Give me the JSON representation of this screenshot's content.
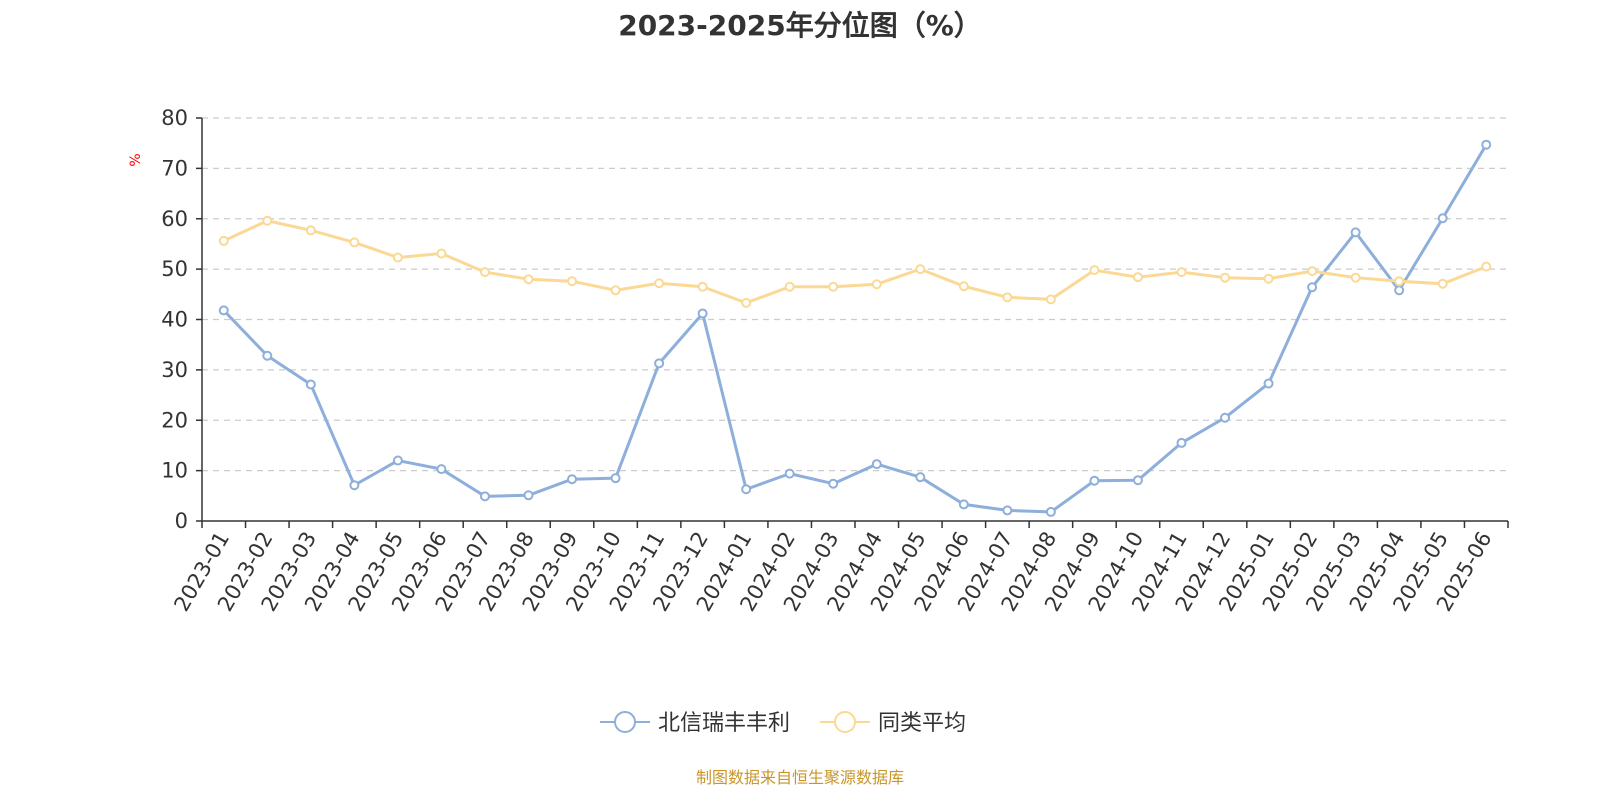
{
  "title": "2023-2025年分位图（%）",
  "source": "制图数据来自恒生聚源数据库",
  "chart_data": {
    "type": "line",
    "x": [
      "2023-01",
      "2023-02",
      "2023-03",
      "2023-04",
      "2023-05",
      "2023-06",
      "2023-07",
      "2023-08",
      "2023-09",
      "2023-10",
      "2023-11",
      "2023-12",
      "2024-01",
      "2024-02",
      "2024-03",
      "2024-04",
      "2024-05",
      "2024-06",
      "2024-07",
      "2024-08",
      "2024-09",
      "2024-10",
      "2024-11",
      "2024-12",
      "2025-01",
      "2025-02",
      "2025-03",
      "2025-04",
      "2025-05",
      "2025-06"
    ],
    "ylabel": "%",
    "ylim": [
      0,
      80
    ],
    "yticks": [
      0,
      10,
      20,
      30,
      40,
      50,
      60,
      70,
      80
    ],
    "grid": true,
    "legend_position": "bottom",
    "series": [
      {
        "name": "北信瑞丰丰利",
        "color": "#8eaedb",
        "values": [
          41.8,
          32.8,
          27.1,
          7.1,
          12.0,
          10.3,
          4.9,
          5.1,
          8.3,
          8.5,
          31.3,
          41.2,
          6.3,
          9.4,
          7.4,
          11.3,
          8.7,
          3.3,
          2.1,
          1.8,
          8.0,
          8.1,
          15.5,
          20.5,
          27.3,
          46.4,
          57.3,
          45.8,
          60.1,
          74.7
        ]
      },
      {
        "name": "同类平均",
        "color": "#fbd995",
        "values": [
          55.6,
          59.6,
          57.7,
          55.3,
          52.3,
          53.1,
          49.4,
          48.0,
          47.6,
          45.8,
          47.2,
          46.5,
          43.3,
          46.5,
          46.5,
          47.0,
          50.0,
          46.6,
          44.4,
          44.0,
          49.8,
          48.4,
          49.4,
          48.3,
          48.1,
          49.6,
          48.3,
          47.6,
          47.1,
          50.5
        ]
      }
    ]
  }
}
